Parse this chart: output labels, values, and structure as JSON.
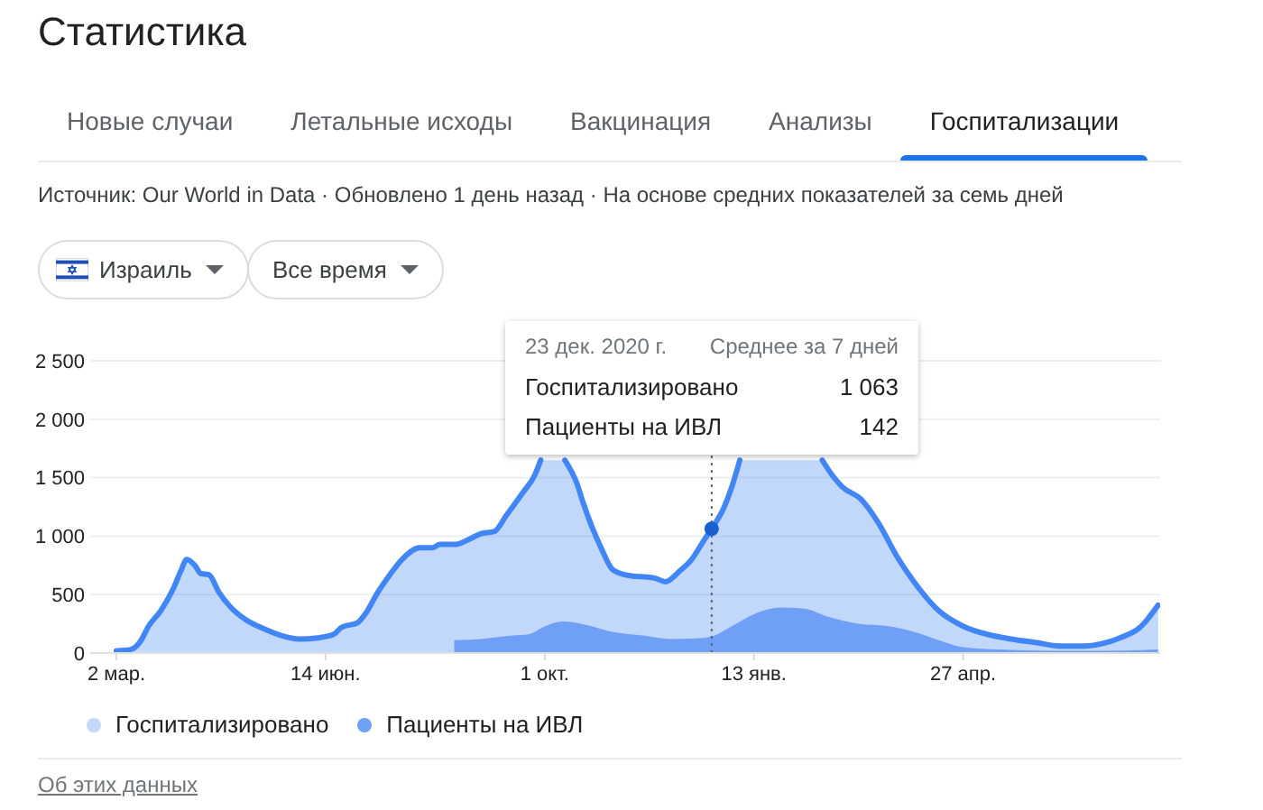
{
  "chart_data": {
    "type": "area",
    "title": "Статистика",
    "subtitle": "Источник: Our World in Data · Обновлено 1 день назад · На основе средних показателей за семь дней",
    "annotations": [
      "Новые случаи",
      "Летальные исходы",
      "Вакцинация",
      "Анализы",
      "Госпитализации",
      "Израиль",
      "Все время",
      "23 дек. 2020 г.",
      "Среднее за 7 дней",
      "1 063",
      "142",
      "Об этих данных"
    ],
    "series": [
      {
        "name": "Госпитализировано",
        "color": "#4285f4",
        "x": [
          "2020-03-02",
          "2020-03-09",
          "2020-03-14",
          "2020-03-18",
          "2020-03-24",
          "2020-03-30",
          "2020-04-03",
          "2020-04-06",
          "2020-04-10",
          "2020-04-13",
          "2020-04-17",
          "2020-04-22",
          "2020-04-28",
          "2020-05-05",
          "2020-05-14",
          "2020-05-23",
          "2020-06-01",
          "2020-06-10",
          "2020-06-18",
          "2020-06-22",
          "2020-06-30",
          "2020-07-04",
          "2020-07-10",
          "2020-07-16",
          "2020-07-22",
          "2020-07-31",
          "2020-08-06",
          "2020-08-10",
          "2020-08-18",
          "2020-08-24",
          "2020-08-30",
          "2020-09-06",
          "2020-09-12",
          "2020-09-20",
          "2020-09-26",
          "2020-09-29",
          "2020-10-05",
          "2020-10-11",
          "2020-10-17",
          "2020-10-20",
          "2020-10-29",
          "2020-11-04",
          "2020-11-13",
          "2020-11-21",
          "2020-11-25",
          "2020-11-30",
          "2020-12-07",
          "2020-12-13",
          "2020-12-19",
          "2020-12-23",
          "2020-12-29",
          "2021-01-02",
          "2021-01-06",
          "2021-01-26",
          "2021-02-16",
          "2021-02-21",
          "2021-02-26",
          "2021-03-07",
          "2021-03-16",
          "2021-03-25",
          "2021-04-03",
          "2021-04-15",
          "2021-04-27",
          "2021-05-09",
          "2021-05-21",
          "2021-06-02",
          "2021-06-14",
          "2021-06-26",
          "2021-07-05",
          "2021-07-14",
          "2021-07-24",
          "2021-08-02"
        ],
        "values": [
          20,
          30,
          100,
          230,
          360,
          540,
          700,
          800,
          750,
          680,
          670,
          520,
          390,
          290,
          210,
          150,
          120,
          130,
          160,
          220,
          260,
          340,
          520,
          670,
          800,
          900,
          900,
          930,
          930,
          970,
          1020,
          1040,
          1180,
          1370,
          1520,
          1650,
          null,
          1650,
          1450,
          1290,
          900,
          710,
          660,
          650,
          640,
          610,
          700,
          800,
          960,
          1063,
          1240,
          1420,
          1650,
          null,
          1650,
          1520,
          1420,
          1320,
          1110,
          830,
          600,
          360,
          230,
          160,
          120,
          90,
          60,
          60,
          80,
          130,
          220,
          410
        ]
      },
      {
        "name": "Пациенты на ИВЛ",
        "color": "#6fa0f6",
        "x": [
          "2020-08-17",
          "2020-08-30",
          "2020-09-15",
          "2020-09-23",
          "2020-09-30",
          "2020-10-10",
          "2020-10-22",
          "2020-11-04",
          "2020-11-19",
          "2020-12-03",
          "2020-12-19",
          "2020-12-23",
          "2021-01-02",
          "2021-01-14",
          "2021-01-26",
          "2021-02-07",
          "2021-02-19",
          "2021-03-06",
          "2021-03-21",
          "2021-04-03",
          "2021-04-15",
          "2021-04-27",
          "2021-05-15",
          "2021-06-08",
          "2021-07-08",
          "2021-08-02"
        ],
        "values": [
          110,
          120,
          150,
          160,
          220,
          270,
          240,
          180,
          150,
          120,
          130,
          142,
          230,
          340,
          390,
          380,
          310,
          250,
          230,
          180,
          110,
          50,
          30,
          20,
          20,
          30
        ]
      }
    ],
    "xlim": [
      "2020-02-18",
      "2021-08-03"
    ],
    "xticks": [
      {
        "value": "2020-03-02",
        "label": "2 мар."
      },
      {
        "value": "2020-06-14",
        "label": "14 июн."
      },
      {
        "value": "2020-10-01",
        "label": "1 окт."
      },
      {
        "value": "2021-01-13",
        "label": "13 янв."
      },
      {
        "value": "2021-04-27",
        "label": "27 апр."
      }
    ],
    "ylim": [
      0,
      2500
    ],
    "yticks": [
      0,
      500,
      {
        "value": 1000,
        "label": "1 000"
      },
      {
        "value": 1500,
        "label": "1 500"
      },
      {
        "value": 2000,
        "label": "2 000"
      },
      {
        "value": 2500,
        "label": "2 500"
      }
    ],
    "grid": "y",
    "legend": "bottom",
    "ref_lines": [
      {
        "axis": "x",
        "value": "2020-12-23",
        "line_style": "dotted",
        "color": "#5f6368"
      }
    ]
  }
}
